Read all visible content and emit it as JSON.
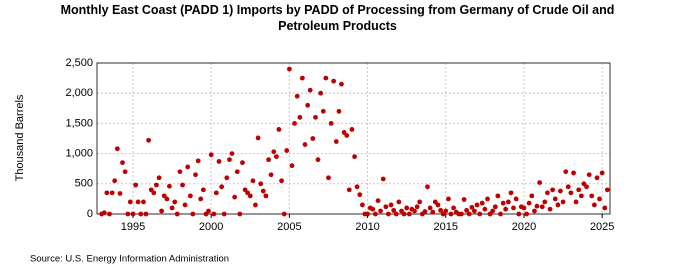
{
  "chart_data": {
    "type": "scatter",
    "title": "Monthly East Coast (PADD 1) Imports by PADD of Processing from Germany of Crude Oil and Petroleum Products",
    "ylabel": "Thousand Barrels",
    "source": "Source: U.S. Energy Information Administration",
    "x": [
      1993,
      1993.17,
      1993.33,
      1993.5,
      1993.67,
      1993.83,
      1994,
      1994.17,
      1994.33,
      1994.5,
      1994.67,
      1994.83,
      1995,
      1995.17,
      1995.33,
      1995.5,
      1995.67,
      1995.83,
      1996,
      1996.17,
      1996.33,
      1996.5,
      1996.67,
      1996.83,
      1997,
      1997.17,
      1997.33,
      1997.5,
      1997.67,
      1997.83,
      1998,
      1998.17,
      1998.33,
      1998.5,
      1998.67,
      1998.83,
      1999,
      1999.17,
      1999.33,
      1999.5,
      1999.67,
      1999.83,
      2000,
      2000.17,
      2000.33,
      2000.5,
      2000.67,
      2000.83,
      2001,
      2001.17,
      2001.33,
      2001.5,
      2001.67,
      2001.83,
      2002,
      2002.17,
      2002.33,
      2002.5,
      2002.67,
      2002.83,
      2003,
      2003.17,
      2003.33,
      2003.5,
      2003.67,
      2003.83,
      2004,
      2004.17,
      2004.33,
      2004.5,
      2004.67,
      2004.83,
      2005,
      2005.17,
      2005.33,
      2005.5,
      2005.67,
      2005.83,
      2006,
      2006.17,
      2006.33,
      2006.5,
      2006.67,
      2006.83,
      2007,
      2007.17,
      2007.33,
      2007.5,
      2007.67,
      2007.83,
      2008,
      2008.17,
      2008.33,
      2008.5,
      2008.67,
      2008.83,
      2009,
      2009.17,
      2009.33,
      2009.5,
      2009.67,
      2009.83,
      2010,
      2010.17,
      2010.33,
      2010.5,
      2010.67,
      2010.83,
      2011,
      2011.17,
      2011.33,
      2011.5,
      2011.67,
      2011.83,
      2012,
      2012.17,
      2012.33,
      2012.5,
      2012.67,
      2012.83,
      2013,
      2013.17,
      2013.33,
      2013.5,
      2013.67,
      2013.83,
      2014,
      2014.17,
      2014.33,
      2014.5,
      2014.67,
      2014.83,
      2015,
      2015.17,
      2015.33,
      2015.5,
      2015.67,
      2015.83,
      2016,
      2016.17,
      2016.33,
      2016.5,
      2016.67,
      2016.83,
      2017,
      2017.17,
      2017.33,
      2017.5,
      2017.67,
      2017.83,
      2018,
      2018.17,
      2018.33,
      2018.5,
      2018.67,
      2018.83,
      2019,
      2019.17,
      2019.33,
      2019.5,
      2019.67,
      2019.83,
      2020,
      2020.17,
      2020.33,
      2020.5,
      2020.67,
      2020.83,
      2021,
      2021.17,
      2021.33,
      2021.5,
      2021.67,
      2021.83,
      2022,
      2022.17,
      2022.33,
      2022.5,
      2022.67,
      2022.83,
      2023,
      2023.17,
      2023.33,
      2023.5,
      2023.67,
      2023.83,
      2024,
      2024.17,
      2024.33,
      2024.5,
      2024.67,
      2024.83,
      2025,
      2025.17,
      2025.33
    ],
    "values": [
      0,
      20,
      350,
      0,
      350,
      550,
      1080,
      340,
      850,
      700,
      0,
      200,
      0,
      480,
      200,
      0,
      200,
      0,
      1220,
      400,
      350,
      480,
      600,
      50,
      300,
      250,
      460,
      100,
      200,
      0,
      700,
      480,
      150,
      780,
      300,
      0,
      650,
      880,
      250,
      400,
      0,
      50,
      980,
      0,
      350,
      870,
      450,
      0,
      600,
      900,
      1000,
      280,
      700,
      0,
      850,
      400,
      350,
      300,
      550,
      150,
      1260,
      500,
      380,
      300,
      900,
      650,
      1030,
      950,
      1400,
      550,
      0,
      1050,
      2400,
      800,
      1500,
      1950,
      1600,
      2250,
      1150,
      1800,
      2050,
      1250,
      1600,
      900,
      2000,
      1700,
      2250,
      600,
      1500,
      2200,
      1200,
      1700,
      2150,
      1350,
      1300,
      400,
      1400,
      950,
      450,
      320,
      150,
      0,
      0,
      100,
      80,
      0,
      220,
      50,
      580,
      120,
      0,
      150,
      60,
      0,
      200,
      50,
      0,
      100,
      0,
      80,
      50,
      120,
      200,
      0,
      40,
      450,
      100,
      30,
      200,
      150,
      60,
      0,
      50,
      250,
      0,
      100,
      30,
      0,
      0,
      240,
      60,
      0,
      110,
      50,
      150,
      0,
      180,
      80,
      250,
      0,
      50,
      120,
      300,
      0,
      180,
      80,
      200,
      350,
      100,
      250,
      0,
      120,
      100,
      0,
      180,
      300,
      50,
      130,
      520,
      120,
      200,
      350,
      80,
      400,
      250,
      150,
      380,
      200,
      700,
      450,
      350,
      680,
      200,
      400,
      300,
      500,
      450,
      650,
      300,
      150,
      600,
      250,
      680,
      100,
      400
    ],
    "color": "#c00000",
    "xlim": [
      1992.7,
      2025.5
    ],
    "xticks": [
      1995,
      2000,
      2005,
      2010,
      2015,
      2020,
      2025
    ],
    "ylim": [
      0,
      2500
    ],
    "yticks": [
      0,
      500,
      {
        "value": 1000,
        "label": "1,000"
      },
      {
        "value": 1500,
        "label": "1,500"
      },
      {
        "value": 2000,
        "label": "2,000"
      },
      {
        "value": 2500,
        "label": "2,500"
      }
    ],
    "grid": true
  }
}
